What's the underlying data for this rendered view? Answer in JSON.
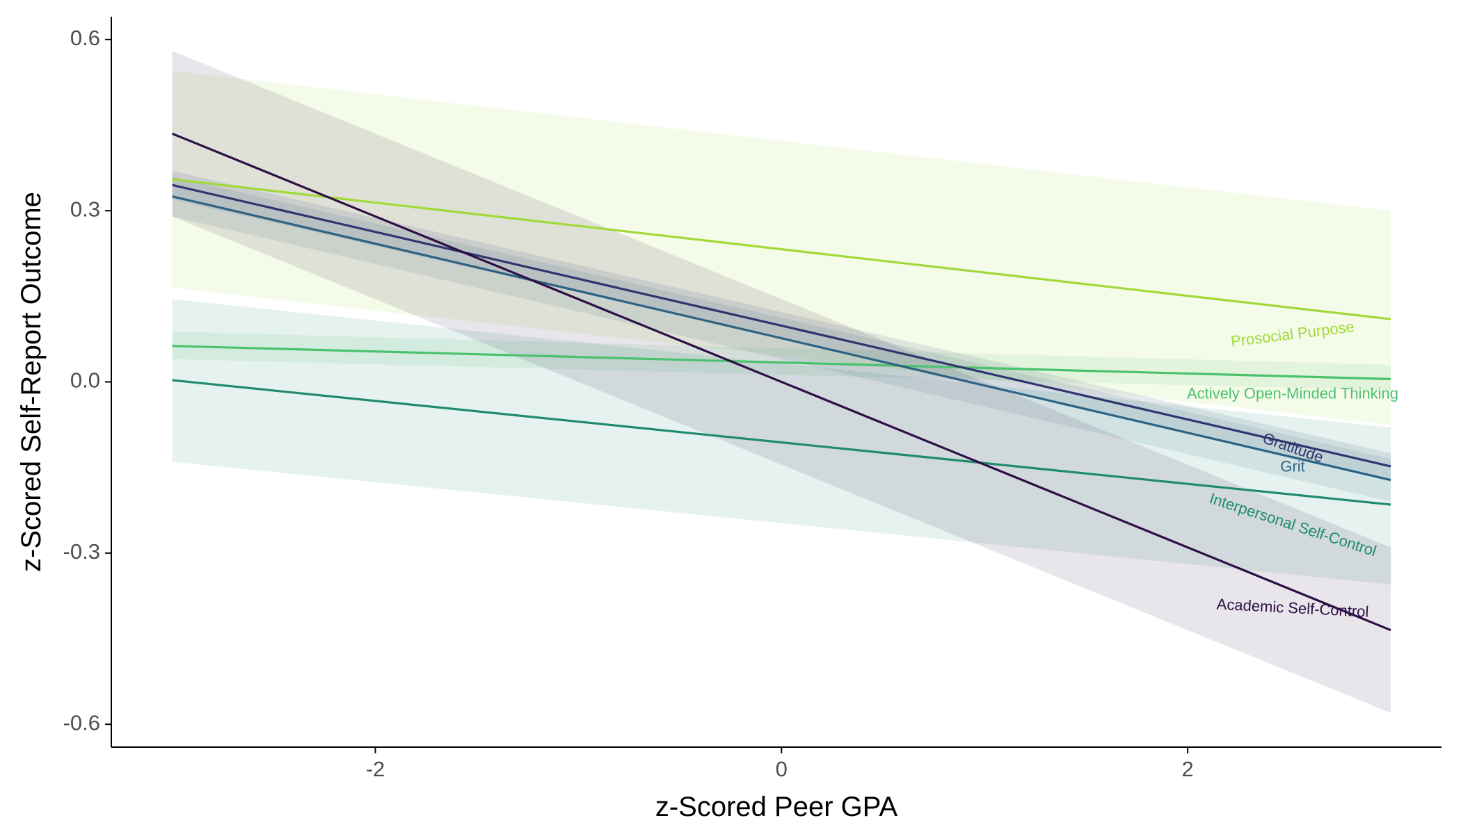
{
  "chart_data": {
    "type": "line",
    "xlabel": "z-Scored Peer GPA",
    "ylabel": "z-Scored Self-Report Outcome",
    "xlim": [
      -3.3,
      3.25
    ],
    "ylim": [
      -0.64,
      0.64
    ],
    "x_ticks": [
      -2,
      0,
      2
    ],
    "x_tick_labels": [
      "-2",
      "0",
      "2"
    ],
    "y_ticks": [
      -0.6,
      -0.3,
      0.0,
      0.3,
      0.6
    ],
    "y_tick_labels": [
      "-0.6",
      "-0.3",
      "0.0",
      "0.3",
      "0.6"
    ],
    "grid": false,
    "legend": "none (direct labels at line ends)",
    "x": [
      -3.0,
      3.0
    ],
    "series": [
      {
        "name": "Prosocial Purpose",
        "color": "#a0da39",
        "values": [
          0.355,
          0.11
        ],
        "lower": [
          0.165,
          -0.075
        ],
        "upper": [
          0.545,
          0.3
        ]
      },
      {
        "name": "Actively Open-Minded Thinking",
        "color": "#4ac16d",
        "values": [
          0.063,
          0.005
        ],
        "lower": [
          0.04,
          -0.015
        ],
        "upper": [
          0.088,
          0.03
        ]
      },
      {
        "name": "Gratitude",
        "color": "#30356f",
        "values": [
          0.345,
          -0.148
        ],
        "lower": [
          0.32,
          -0.17
        ],
        "upper": [
          0.37,
          -0.125
        ]
      },
      {
        "name": "Grit",
        "color": "#2c6383",
        "values": [
          0.325,
          -0.172
        ],
        "lower": [
          0.29,
          -0.21
        ],
        "upper": [
          0.36,
          -0.135
        ]
      },
      {
        "name": "Interpersonal Self-Control",
        "color": "#1f8a70",
        "values": [
          0.003,
          -0.215
        ],
        "lower": [
          -0.14,
          -0.355
        ],
        "upper": [
          0.145,
          -0.08
        ]
      },
      {
        "name": "Academic Self-Control",
        "color": "#2d0f45",
        "values": [
          0.435,
          -0.435
        ],
        "lower": [
          0.29,
          -0.58
        ],
        "upper": [
          0.58,
          -0.29
        ]
      }
    ]
  }
}
